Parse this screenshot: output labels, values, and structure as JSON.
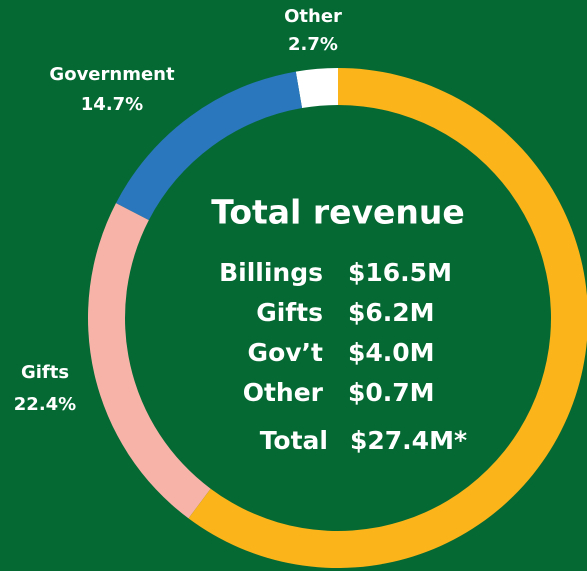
{
  "chart_data": {
    "type": "pie",
    "donut": true,
    "categories": [
      null,
      "Gifts",
      "Government",
      "Other"
    ],
    "values": [
      60.2,
      22.4,
      14.7,
      2.7
    ],
    "value_labels": [
      null,
      "22.4%",
      "14.7%",
      "2.7%"
    ],
    "colors": [
      "#fbb41a",
      "#f7b3a8",
      "#2a77bd",
      "#ffffff"
    ],
    "center": {
      "title": "Total revenue",
      "rows": [
        [
          "Billings",
          "$16.5M"
        ],
        [
          "Gifts",
          "$6.2M"
        ],
        [
          "Gov’t",
          "$4.0M"
        ],
        [
          "Other",
          "$0.7M"
        ]
      ],
      "total": [
        "Total",
        "$27.4M*"
      ]
    }
  }
}
